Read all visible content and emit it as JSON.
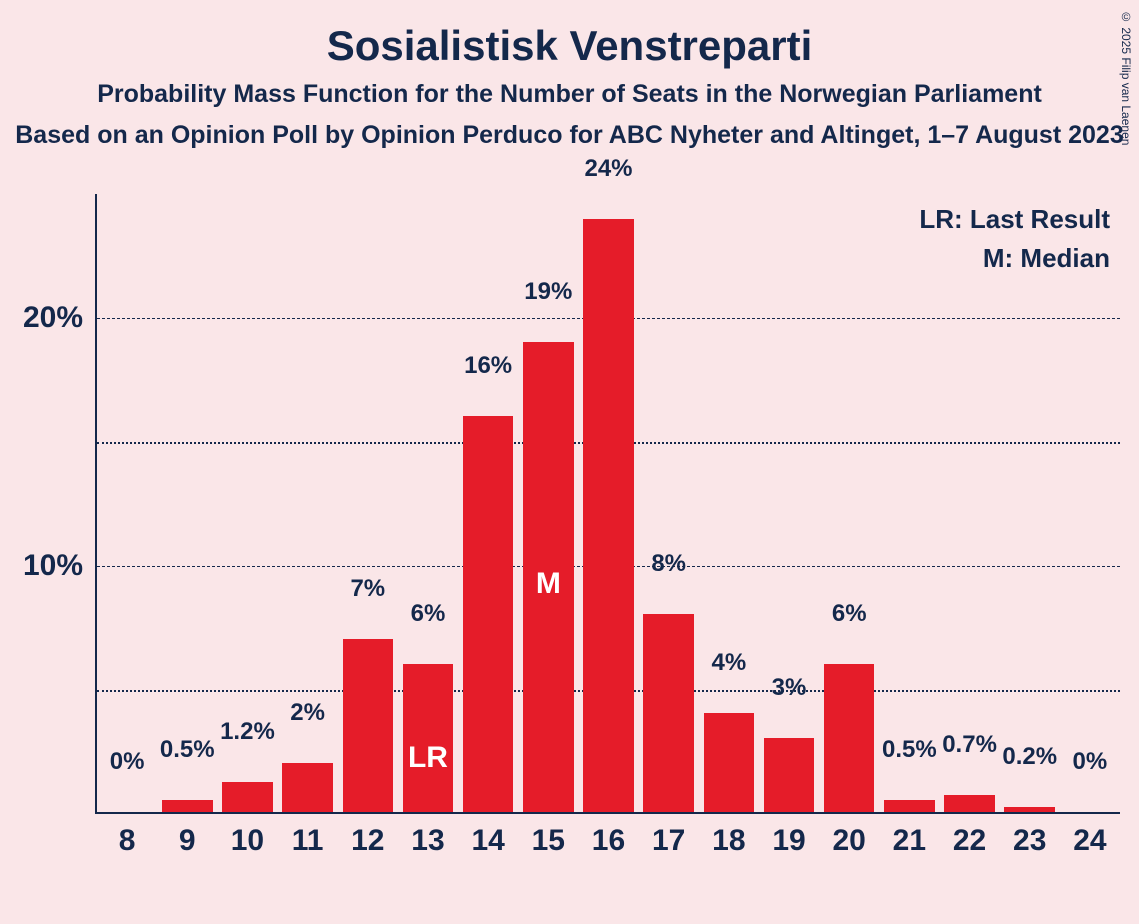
{
  "title": "Sosialistisk Venstreparti",
  "subtitle": "Probability Mass Function for the Number of Seats in the Norwegian Parliament",
  "subtitle2": "Based on an Opinion Poll by Opinion Perduco for ABC Nyheter and Altinget, 1–7 August 2023",
  "copyright": "© 2025 Filip van Laenen",
  "legend": {
    "lr": "LR: Last Result",
    "m": "M: Median"
  },
  "chart": {
    "type": "bar",
    "background_color": "#fae6e8",
    "bar_color": "#e51c29",
    "axis_color": "#14284b",
    "text_color": "#14284b",
    "inner_label_color": "#ffffff",
    "title_fontsize": 42,
    "subtitle_fontsize": 25,
    "ylim": [
      0,
      25
    ],
    "y_major_ticks": [
      10,
      20
    ],
    "y_minor_ticks": [
      5,
      15
    ],
    "y_tick_labels": {
      "10": "10%",
      "20": "20%"
    },
    "bar_width_ratio": 0.84,
    "categories": [
      8,
      9,
      10,
      11,
      12,
      13,
      14,
      15,
      16,
      17,
      18,
      19,
      20,
      21,
      22,
      23,
      24
    ],
    "values": [
      0,
      0.5,
      1.2,
      2,
      7,
      6,
      16,
      19,
      24,
      8,
      4,
      3,
      6,
      0.5,
      0.7,
      0.2,
      0
    ],
    "value_labels": [
      "0%",
      "0.5%",
      "1.2%",
      "2%",
      "7%",
      "6%",
      "16%",
      "19%",
      "24%",
      "8%",
      "4%",
      "3%",
      "6%",
      "0.5%",
      "0.7%",
      "0.2%",
      "0%"
    ],
    "lr_index": 5,
    "lr_label": "LR",
    "median_index": 7,
    "median_label": "M"
  }
}
